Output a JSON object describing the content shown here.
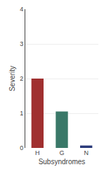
{
  "chart_data": {
    "type": "bar",
    "categories": [
      "H",
      "G",
      "N"
    ],
    "values": [
      2.0,
      1.05,
      0.07
    ],
    "colors": [
      "#a03030",
      "#3a7868",
      "#2a3a7a"
    ],
    "xlabel": "Subsyndromes",
    "ylabel": "Severity",
    "ylim": [
      0.0,
      4.0
    ],
    "yticks": [
      0.0,
      1.0,
      2.0,
      3.0,
      4.0
    ],
    "grid": true
  }
}
